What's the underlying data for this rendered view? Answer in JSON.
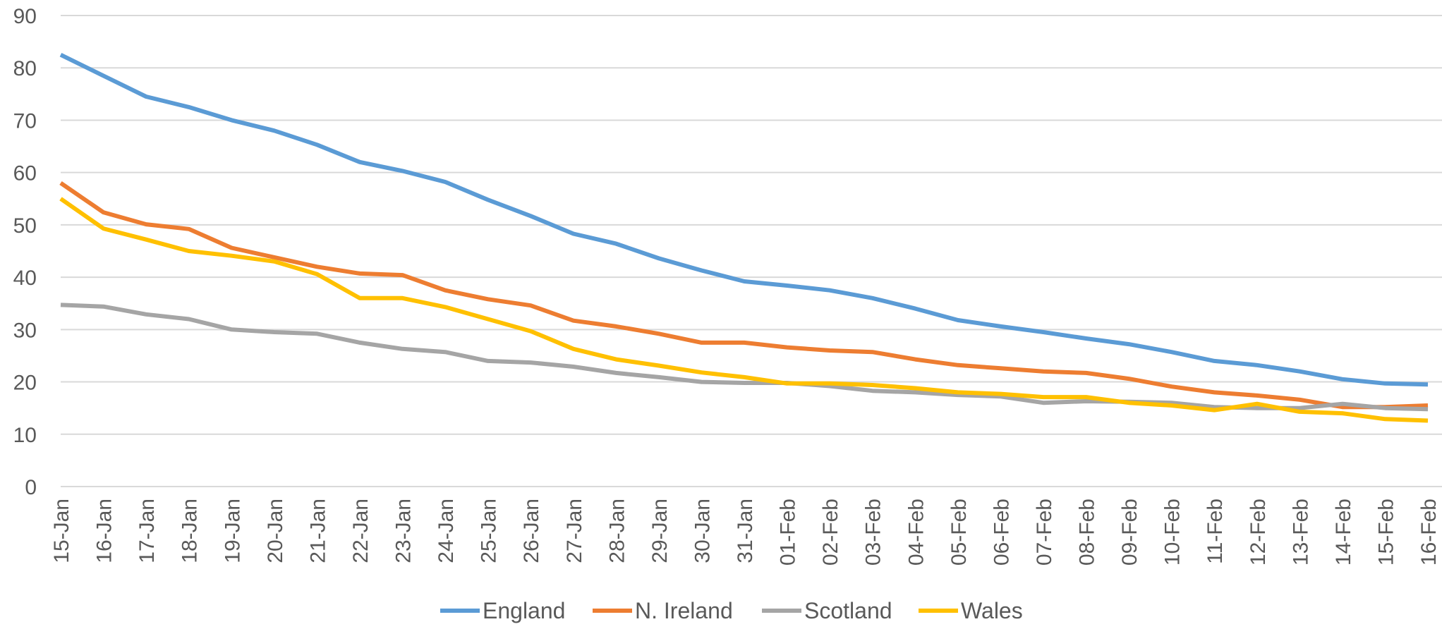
{
  "chart_data": {
    "type": "line",
    "title": "",
    "xlabel": "",
    "ylabel": "",
    "ylim": [
      0,
      90
    ],
    "yticks": [
      0,
      10,
      20,
      30,
      40,
      50,
      60,
      70,
      80,
      90
    ],
    "grid": "horizontal",
    "legend_position": "bottom",
    "categories": [
      "15-Jan",
      "16-Jan",
      "17-Jan",
      "18-Jan",
      "19-Jan",
      "20-Jan",
      "21-Jan",
      "22-Jan",
      "23-Jan",
      "24-Jan",
      "25-Jan",
      "26-Jan",
      "27-Jan",
      "28-Jan",
      "29-Jan",
      "30-Jan",
      "31-Jan",
      "01-Feb",
      "02-Feb",
      "03-Feb",
      "04-Feb",
      "05-Feb",
      "06-Feb",
      "07-Feb",
      "08-Feb",
      "09-Feb",
      "10-Feb",
      "11-Feb",
      "12-Feb",
      "13-Feb",
      "14-Feb",
      "15-Feb",
      "16-Feb"
    ],
    "series": [
      {
        "name": "England",
        "color": "#5b9bd5",
        "values": [
          82.5,
          78.5,
          74.5,
          72.5,
          70.0,
          68.0,
          65.3,
          62.0,
          60.3,
          58.2,
          54.8,
          51.7,
          48.3,
          46.4,
          43.6,
          41.3,
          39.2,
          38.4,
          37.5,
          36.0,
          34.0,
          31.8,
          30.6,
          29.5,
          28.3,
          27.2,
          25.7,
          24.0,
          23.2,
          22.0,
          20.5,
          19.7,
          19.5
        ]
      },
      {
        "name": "N. Ireland",
        "color": "#ed7d31",
        "values": [
          58.0,
          52.4,
          50.1,
          49.2,
          45.6,
          43.8,
          42.0,
          40.7,
          40.4,
          37.5,
          35.8,
          34.6,
          31.7,
          30.6,
          29.2,
          27.5,
          27.5,
          26.6,
          26.0,
          25.7,
          24.3,
          23.2,
          22.6,
          22.0,
          21.7,
          20.6,
          19.1,
          18.0,
          17.4,
          16.6,
          15.2,
          15.2,
          15.5
        ]
      },
      {
        "name": "Scotland",
        "color": "#a5a5a5",
        "values": [
          34.7,
          34.4,
          32.9,
          32.0,
          30.0,
          29.5,
          29.2,
          27.5,
          26.3,
          25.7,
          24.0,
          23.7,
          22.9,
          21.7,
          20.9,
          20.0,
          19.8,
          19.8,
          19.2,
          18.3,
          18.0,
          17.5,
          17.2,
          16.0,
          16.3,
          16.2,
          16.0,
          15.2,
          15.0,
          15.0,
          15.8,
          15.0,
          14.8
        ]
      },
      {
        "name": "Wales",
        "color": "#ffc000",
        "values": [
          55.0,
          49.3,
          47.2,
          45.0,
          44.1,
          43.0,
          40.6,
          36.0,
          36.0,
          34.3,
          32.0,
          29.7,
          26.3,
          24.3,
          23.1,
          21.8,
          20.9,
          19.7,
          19.7,
          19.4,
          18.8,
          18.0,
          17.7,
          17.1,
          17.1,
          16.0,
          15.5,
          14.6,
          15.8,
          14.3,
          14.0,
          12.9,
          12.6
        ]
      }
    ]
  }
}
